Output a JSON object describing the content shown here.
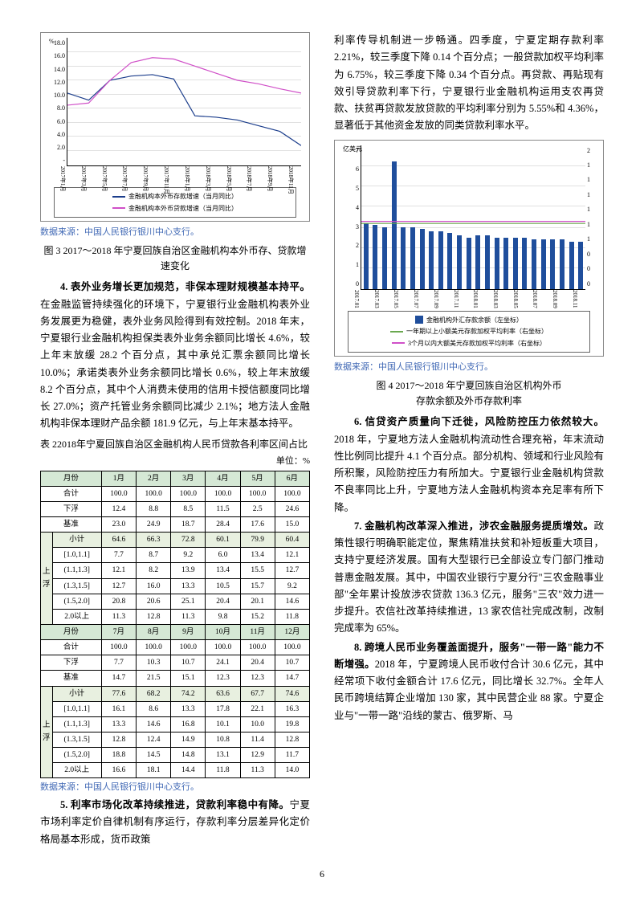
{
  "left": {
    "chart1": {
      "type": "line",
      "y_title": "%",
      "y_ticks": [
        "18.0",
        "16.0",
        "14.0",
        "12.0",
        "10.0",
        "8.0",
        "6.0",
        "4.0",
        "2.0",
        "-"
      ],
      "x_labels": [
        "2017年1月",
        "2017年3月",
        "2017年5月",
        "2017年7月",
        "2017年9月",
        "2017年11月",
        "2018年1月",
        "2018年3月",
        "2018年5月",
        "2018年7月",
        "2018年9月",
        "2018年11月"
      ],
      "series": [
        {
          "name": "金融机构本外币存款增速（当月同比）",
          "color": "#1c3e8c",
          "points": [
            10.2,
            9.2,
            12.0,
            12.6,
            12.8,
            12.2,
            7.0,
            6.8,
            6.4,
            5.6,
            4.8,
            2.8
          ]
        },
        {
          "name": "金融机构本外币贷款增速（当月同比）",
          "color": "#d050c8",
          "points": [
            8.5,
            8.8,
            12.0,
            14.5,
            15.2,
            15.0,
            14.0,
            13.0,
            12.0,
            11.5,
            10.8,
            10.2
          ]
        }
      ],
      "grid_color": "#e0e0e0"
    },
    "source1": "数据来源：中国人民银行银川中心支行。",
    "caption1": "图 3  2017～2018 年宁夏回族自治区金融机构本外币存、贷款增速变化",
    "para4": {
      "lead": "4. 表外业务增长更加规范，非保本理财规模基本持平。",
      "body": "在金融监管持续强化的环境下，宁夏银行业金融机构表外业务发展更为稳健，表外业务风险得到有效控制。2018 年末，宁夏银行业金融机构担保类表外业务余额同比增长 4.6%，较上年末放缓 28.2 个百分点，其中承兑汇票余额同比增长 10.0%；承诺类表外业务余额同比增长 0.6%，较上年末放缓 8.2 个百分点，其中个人消费未使用的信用卡授信额度同比增长 27.0%；资产托管业务余额同比减少 2.1%；地方法人金融机构非保本理财产品余额 181.9 亿元，与上年末基本持平。"
    },
    "tbl_caption": "表 22018年宁夏回族自治区金融机构人民币贷款各利率区间占比",
    "unit": "单位：%",
    "table": {
      "head1": [
        "月份",
        "1月",
        "2月",
        "3月",
        "4月",
        "5月",
        "6月"
      ],
      "r1": [
        "合计",
        "100.0",
        "100.0",
        "100.0",
        "100.0",
        "100.0",
        "100.0"
      ],
      "r2": [
        "下浮",
        "12.4",
        "8.8",
        "8.5",
        "11.5",
        "2.5",
        "24.6"
      ],
      "r3": [
        "基准",
        "23.0",
        "24.9",
        "18.7",
        "28.4",
        "17.6",
        "15.0"
      ],
      "r4": [
        "小计",
        "64.6",
        "66.3",
        "72.8",
        "60.1",
        "79.9",
        "60.4"
      ],
      "r5": [
        "[1.0,1.1]",
        "7.7",
        "8.7",
        "9.2",
        "6.0",
        "13.4",
        "12.1"
      ],
      "r6": [
        "(1.1,1.3]",
        "12.1",
        "8.2",
        "13.9",
        "13.4",
        "15.5",
        "12.7"
      ],
      "r7": [
        "(1.3,1.5]",
        "12.7",
        "16.0",
        "13.3",
        "10.5",
        "15.7",
        "9.2"
      ],
      "r8": [
        "(1.5,2.0]",
        "20.8",
        "20.6",
        "25.1",
        "20.4",
        "20.1",
        "14.6"
      ],
      "r9": [
        "2.0以上",
        "11.3",
        "12.8",
        "11.3",
        "9.8",
        "15.2",
        "11.8"
      ],
      "head2": [
        "月份",
        "7月",
        "8月",
        "9月",
        "10月",
        "11月",
        "12月"
      ],
      "r10": [
        "合计",
        "100.0",
        "100.0",
        "100.0",
        "100.0",
        "100.0",
        "100.0"
      ],
      "r11": [
        "下浮",
        "7.7",
        "10.3",
        "10.7",
        "24.1",
        "20.4",
        "10.7"
      ],
      "r12": [
        "基准",
        "14.7",
        "21.5",
        "15.1",
        "12.3",
        "12.3",
        "14.7"
      ],
      "r13": [
        "小计",
        "77.6",
        "68.2",
        "74.2",
        "63.6",
        "67.7",
        "74.6"
      ],
      "r14": [
        "[1.0,1.1]",
        "16.1",
        "8.6",
        "13.3",
        "17.8",
        "22.1",
        "16.3"
      ],
      "r15": [
        "(1.1,1.3]",
        "13.3",
        "14.6",
        "16.8",
        "10.1",
        "10.0",
        "19.8"
      ],
      "r16": [
        "(1.3,1.5]",
        "12.8",
        "12.4",
        "14.9",
        "10.8",
        "11.4",
        "12.8"
      ],
      "r17": [
        "(1.5,2.0]",
        "18.8",
        "14.5",
        "14.8",
        "13.1",
        "12.9",
        "11.7"
      ],
      "r18": [
        "2.0以上",
        "16.6",
        "18.1",
        "14.4",
        "11.8",
        "11.3",
        "14.0"
      ]
    },
    "source2": "数据来源：中国人民银行银川中心支行。",
    "para5": {
      "lead": "5. 利率市场化改革持续推进，贷款利率稳中有降。",
      "body": "宁夏市场利率定价自律机制有序运行，存款利率分层差异化定价格局基本形成，货币政策"
    }
  },
  "right": {
    "para_top": "利率传导机制进一步畅通。四季度，宁夏定期存款利率 2.21%，较三季度下降 0.14 个百分点；一般贷款加权平均利率为 6.75%，较三季度下降 0.34 个百分点。再贷款、再贴现有效引导贷款利率下行，宁夏银行业金融机构运用支农再贷款、扶贫再贷款发放贷款的平均利率分别为 5.55%和 4.36%，显著低于其他资金发放的同类贷款利率水平。",
    "chart2": {
      "type": "bar+line",
      "y_title": "亿美元",
      "y_ticks": [
        "7",
        "6",
        "5",
        "4",
        "3",
        "2",
        "1",
        "0"
      ],
      "y_ticks_right": [
        "2",
        "1",
        "1",
        "1",
        "1",
        "1",
        "1",
        "0",
        "0",
        "0"
      ],
      "x_labels": [
        "2017.01",
        "2017.03",
        "2017.05",
        "2017.07",
        "2017.09",
        "2017.11",
        "2018.01",
        "2018.03",
        "2018.05",
        "2018.07",
        "2018.09",
        "2018.11"
      ],
      "bars": {
        "color": "#1f4e9c",
        "values": [
          3.2,
          3.1,
          3.0,
          6.2,
          3.0,
          3.0,
          2.9,
          2.8,
          2.8,
          2.7,
          2.6,
          2.5,
          2.6,
          2.6,
          2.5,
          2.5,
          2.5,
          2.5,
          2.4,
          2.4,
          2.4,
          2.4,
          2.3,
          2.3
        ]
      },
      "series": [
        {
          "name": "金融机构外汇存款余额（左坐标）",
          "color": "#1f4e9c",
          "kind": "bar"
        },
        {
          "name": "一年期以上小额美元存款加权平均利率（右坐标）",
          "color": "#6aa84f",
          "kind": "line",
          "points": [
            3.2,
            3.2,
            3.2,
            3.2,
            3.2,
            3.2,
            3.2,
            3.2,
            3.2,
            3.2,
            3.2,
            3.2
          ]
        },
        {
          "name": "3个月以内大额美元存款加权平均利率（右坐标）",
          "color": "#d050c8",
          "kind": "line",
          "points": [
            3.3,
            3.3,
            3.3,
            3.3,
            3.3,
            3.3,
            3.3,
            3.3,
            3.3,
            3.3,
            3.3,
            3.3
          ]
        }
      ],
      "grid_color": "#e8e8e8"
    },
    "source3": "数据来源：中国人民银行银川中心支行。",
    "caption2": "图 4  2017～2018 年宁夏回族自治区机构外币",
    "caption2b": "存款余额及外币存款利率",
    "para6": {
      "lead": "6. 信贷资产质量向下迁徙，风险防控压力依然较大。",
      "body": "2018 年，宁夏地方法人金融机构流动性合理充裕，年末流动性比例同比提升 4.1 个百分点。部分机构、领域和行业风险有所积聚，风险防控压力有所加大。宁夏银行业金融机构贷款不良率同比上升，宁夏地方法人金融机构资本充足率有所下降。"
    },
    "para7": {
      "lead": "7. 金融机构改革深入推进，涉农金融服务提质增效。",
      "body": "政策性银行明确职能定位，聚焦精准扶贫和补短板重大项目，支持宁夏经济发展。国有大型银行已全部设立专门部门推动普惠金融发展。其中，中国农业银行宁夏分行\"三农金融事业部\"全年累计投放涉农贷款 136.3 亿元，服务\"三农\"效力进一步提升。农信社改革持续推进，13 家农信社完成改制，改制完成率为 65%。"
    },
    "para8": {
      "lead": "8. 跨境人民币业务覆盖面提升，服务\"一带一路\"能力不断增强。",
      "body": "2018 年，宁夏跨境人民币收付合计 30.6 亿元，其中经常项下收付金额合计 17.6 亿元，同比增长 32.7%。全年人民币跨境结算企业增加 130 家，其中民营企业 88 家。宁夏企业与\"一带一路\"沿线的蒙古、俄罗斯、马"
    }
  },
  "pagenum": "6"
}
